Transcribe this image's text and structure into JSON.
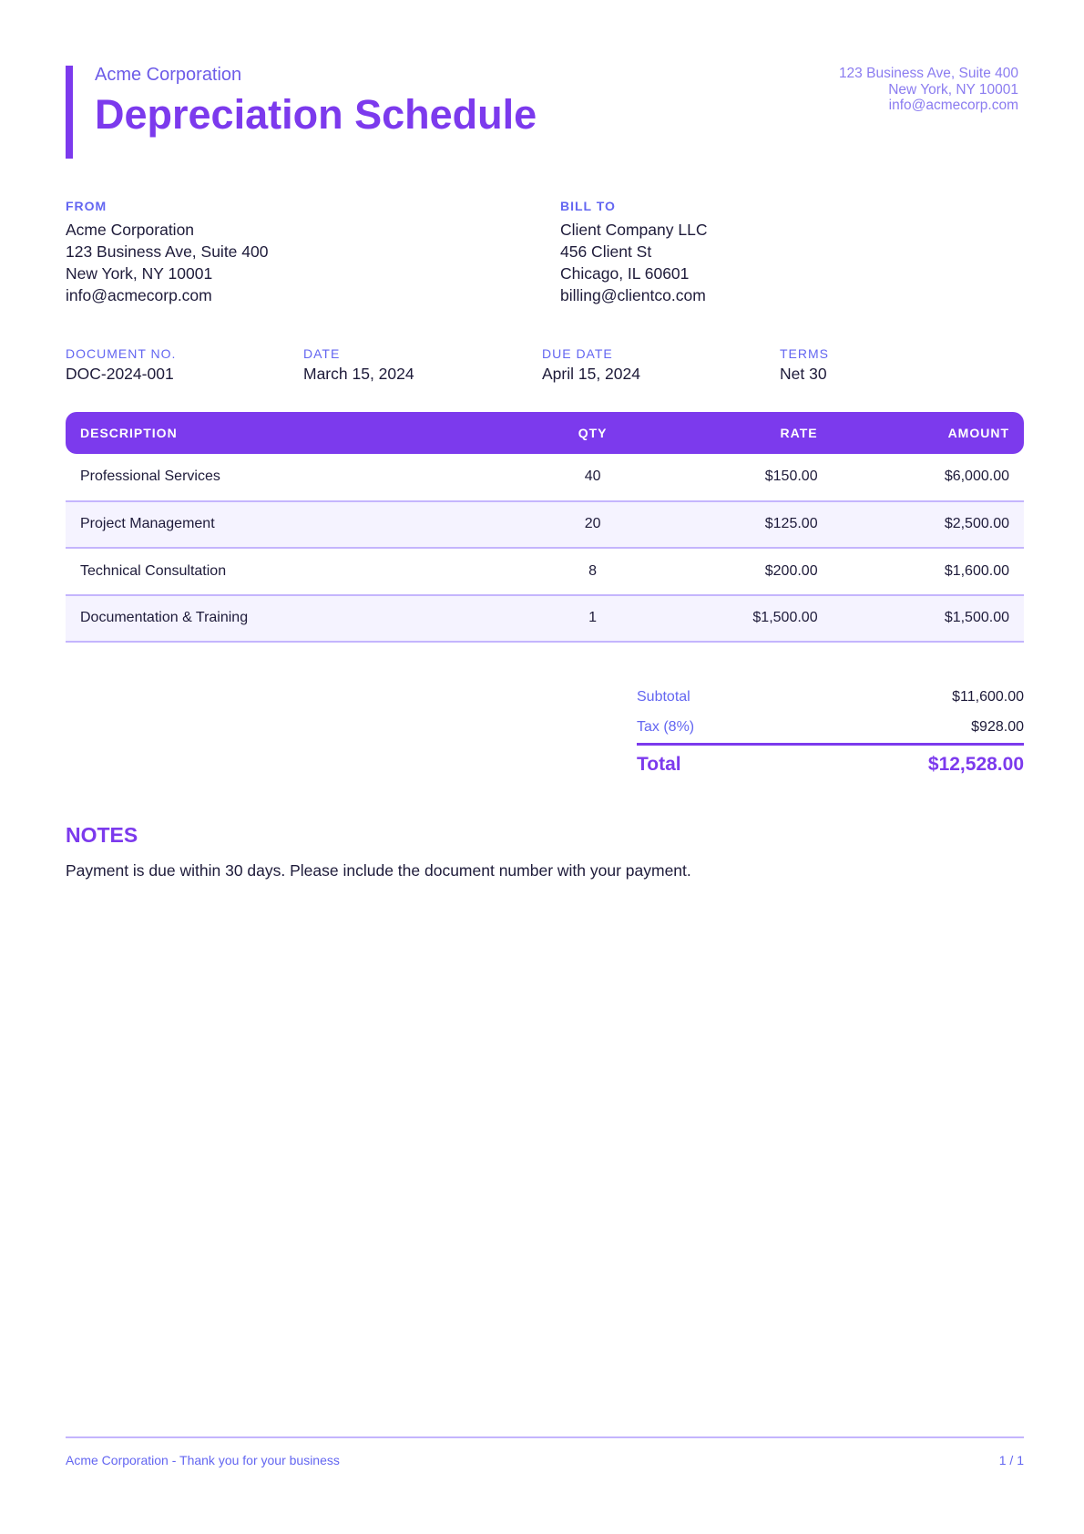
{
  "header": {
    "company": "Acme Corporation",
    "title": "Depreciation Schedule",
    "address_lines": [
      "123 Business Ave, Suite 400",
      "New York, NY 10001",
      "info@acmecorp.com"
    ]
  },
  "from": {
    "label": "FROM",
    "lines": [
      "Acme Corporation",
      "123 Business Ave, Suite 400",
      "New York, NY 10001",
      "info@acmecorp.com"
    ]
  },
  "bill_to": {
    "label": "BILL TO",
    "lines": [
      "Client Company LLC",
      "456 Client St",
      "Chicago, IL 60601",
      "billing@clientco.com"
    ]
  },
  "meta": [
    {
      "label": "DOCUMENT NO.",
      "value": "DOC-2024-001"
    },
    {
      "label": "DATE",
      "value": "March 15, 2024"
    },
    {
      "label": "DUE DATE",
      "value": "April 15, 2024"
    },
    {
      "label": "TERMS",
      "value": "Net 30"
    }
  ],
  "table": {
    "headers": [
      "DESCRIPTION",
      "QTY",
      "RATE",
      "AMOUNT"
    ],
    "rows": [
      [
        "Professional Services",
        "40",
        "$150.00",
        "$6,000.00"
      ],
      [
        "Project Management",
        "20",
        "$125.00",
        "$2,500.00"
      ],
      [
        "Technical Consultation",
        "8",
        "$200.00",
        "$1,600.00"
      ],
      [
        "Documentation & Training",
        "1",
        "$1,500.00",
        "$1,500.00"
      ]
    ]
  },
  "totals": {
    "subtotal_label": "Subtotal",
    "subtotal": "$11,600.00",
    "tax_label": "Tax (8%)",
    "tax": "$928.00",
    "total_label": "Total",
    "total": "$12,528.00"
  },
  "notes": {
    "heading": "NOTES",
    "text": "Payment is due within 30 days. Please include the document number with your payment."
  },
  "footer": {
    "left": "Acme Corporation - Thank you for your business",
    "right": "1 / 1"
  },
  "colors": {
    "accent": "#7c3aed",
    "label": "#6366f1",
    "row_alt": "#f5f3ff",
    "border": "#c4b5fd"
  }
}
